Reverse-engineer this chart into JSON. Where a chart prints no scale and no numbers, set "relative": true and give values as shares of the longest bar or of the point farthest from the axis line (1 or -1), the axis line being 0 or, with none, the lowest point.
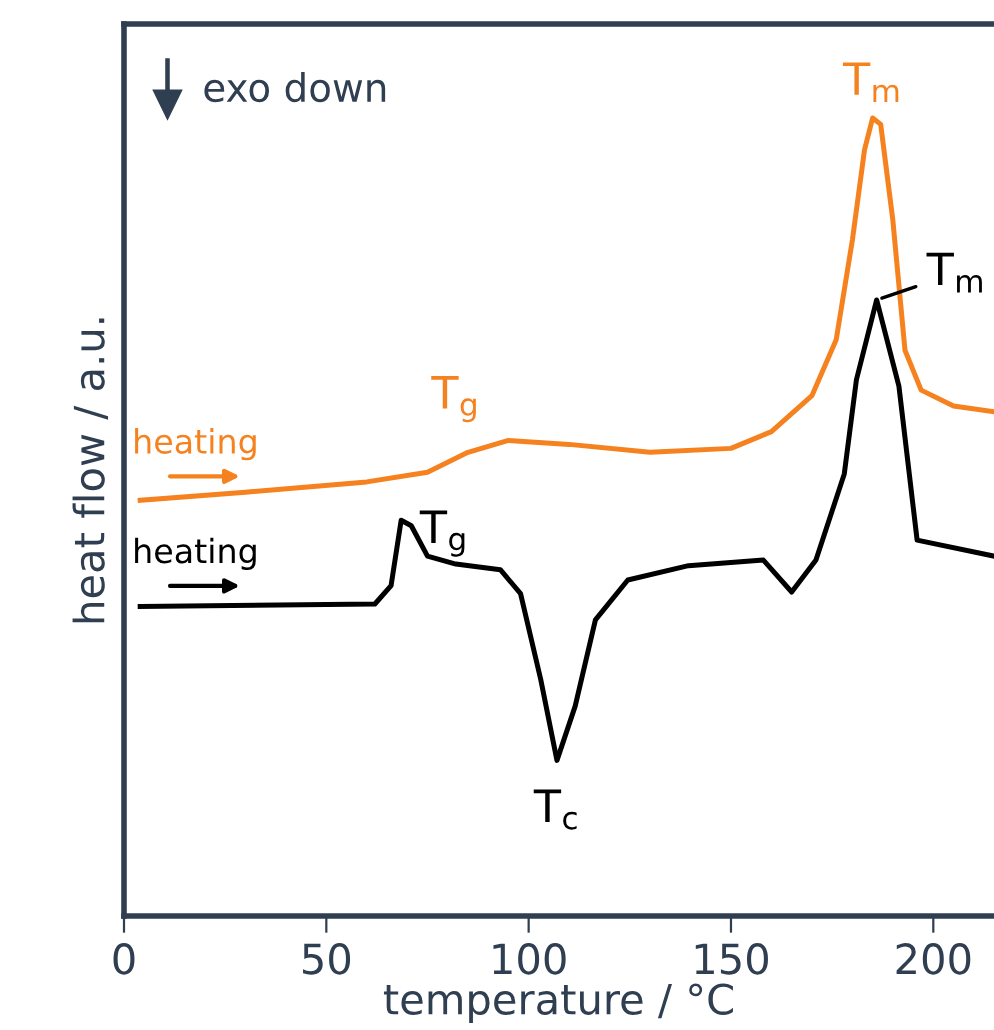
{
  "chart_data": {
    "type": "line",
    "relative": true,
    "xlabel": "temperature / °C",
    "ylabel": "heat flow / a.u.",
    "xlim": [
      0,
      215
    ],
    "xticks": [
      0,
      50,
      100,
      150,
      200
    ],
    "grid": false,
    "legend": "left",
    "marker": "none",
    "line_style": "solid",
    "annotations": [
      "exo down",
      {
        "text": "T$_{g}$",
        "x": 82,
        "y": 0.57
      },
      {
        "text": "T$_{m}$",
        "x": 185,
        "y": 1.0
      },
      {
        "text": "T$_{g}$",
        "x": 69,
        "y": 0.5
      },
      {
        "text": "T$_{c}$",
        "x": 107,
        "y": 0.195
      },
      {
        "text": "T$_{m}$",
        "x": 186,
        "y": 0.772
      }
    ],
    "series": [
      {
        "name": "heating",
        "color": "#f5821f",
        "x": [
          4,
          30,
          60,
          75,
          85,
          95,
          110,
          130,
          150,
          160,
          170,
          176,
          180,
          183,
          185,
          187,
          190,
          193,
          197,
          205,
          215
        ],
        "values": [
          0.521,
          0.531,
          0.544,
          0.556,
          0.581,
          0.596,
          0.591,
          0.581,
          0.586,
          0.607,
          0.652,
          0.722,
          0.847,
          0.96,
          1.0,
          0.992,
          0.872,
          0.709,
          0.659,
          0.639,
          0.632
        ]
      },
      {
        "name": "heating",
        "color": "#000000",
        "x": [
          4,
          62,
          66,
          68.5,
          71,
          75,
          82,
          93,
          98,
          103,
          107,
          111.5,
          116.5,
          124.5,
          139.5,
          158,
          165,
          171,
          178,
          181,
          186,
          191.5,
          196,
          215
        ],
        "values": [
          0.388,
          0.391,
          0.414,
          0.496,
          0.489,
          0.451,
          0.441,
          0.434,
          0.404,
          0.296,
          0.195,
          0.263,
          0.371,
          0.421,
          0.439,
          0.446,
          0.406,
          0.446,
          0.554,
          0.672,
          0.772,
          0.664,
          0.471,
          0.451
        ]
      }
    ]
  }
}
